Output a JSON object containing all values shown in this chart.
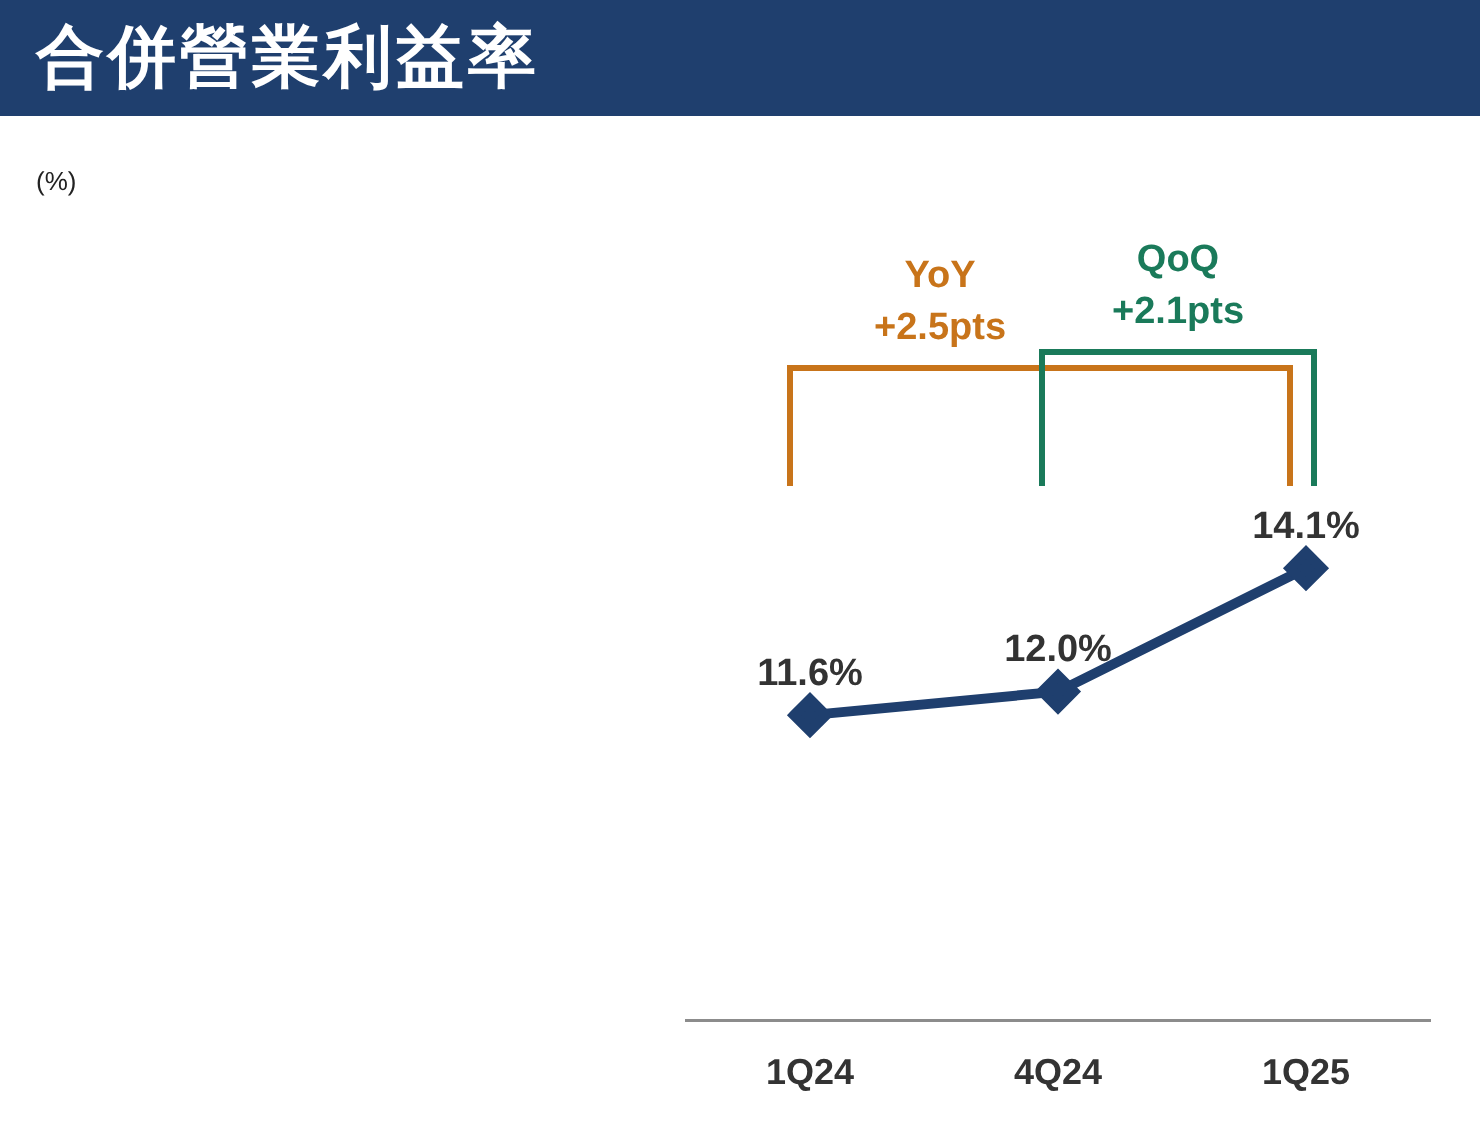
{
  "chart_data": {
    "type": "line",
    "title": "合併營業利益率",
    "categories": [
      "1Q24",
      "4Q24",
      "1Q25"
    ],
    "series": [
      {
        "color": "#1f3f6e",
        "values": [
          11.6,
          12.0,
          14.1
        ],
        "value_labels": [
          "11.6%",
          "12.0%",
          "14.1%"
        ]
      }
    ],
    "marker": "diamond",
    "line_style": "solid",
    "legend": false,
    "grid": false,
    "annotations": [
      "(%)",
      "YoY\n+2.5pts",
      "QoQ\n+2.1pts"
    ]
  }
}
